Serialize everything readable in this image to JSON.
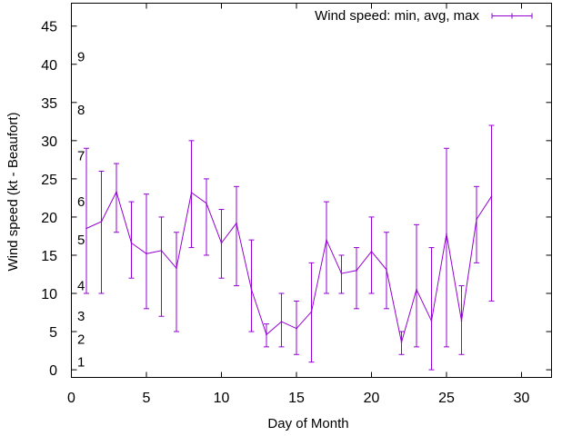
{
  "chart_data": {
    "type": "line",
    "title": "",
    "xlabel": "Day of Month",
    "ylabel": "Wind speed (kt - Beaufort)",
    "xlim": [
      0,
      32
    ],
    "ylim": [
      -1,
      48
    ],
    "xticks": [
      0,
      5,
      10,
      15,
      20,
      25,
      30
    ],
    "yticks": [
      0,
      5,
      10,
      15,
      20,
      25,
      30,
      35,
      40,
      45
    ],
    "grid": false,
    "legend_position": "top-right",
    "series": [
      {
        "name": "Wind speed: min, avg, max",
        "color": "#9400d3",
        "style": "line with error bars",
        "x": [
          1,
          2,
          3,
          4,
          5,
          6,
          7,
          8,
          9,
          10,
          11,
          12,
          13,
          14,
          15,
          16,
          17,
          18,
          19,
          20,
          21,
          22,
          23,
          24,
          25,
          26,
          27,
          28
        ],
        "avg": [
          18.5,
          19.4,
          23.3,
          16.6,
          15.2,
          15.6,
          13.3,
          23.2,
          21.8,
          16.6,
          19.2,
          10.5,
          4.6,
          6.3,
          5.4,
          7.6,
          17.0,
          12.6,
          13.0,
          15.5,
          13.1,
          3.6,
          10.5,
          6.4,
          17.8,
          6.4,
          19.7,
          22.7
        ],
        "min": [
          10,
          10,
          18,
          12,
          8,
          7,
          5,
          16,
          15,
          12,
          11,
          5,
          3,
          3,
          2,
          1,
          10,
          10,
          8,
          10,
          8,
          2,
          3,
          0,
          3,
          2,
          14,
          9
        ],
        "max": [
          29,
          26,
          27,
          22,
          23,
          20,
          18,
          30,
          25,
          21,
          24,
          17,
          6,
          10,
          9,
          14,
          22,
          15,
          16,
          20,
          18,
          5,
          19,
          16,
          29,
          11,
          24,
          32
        ]
      }
    ],
    "beaufort_labels": [
      {
        "text": "1",
        "y": 1
      },
      {
        "text": "2",
        "y": 4
      },
      {
        "text": "3",
        "y": 7
      },
      {
        "text": "4",
        "y": 11
      },
      {
        "text": "5",
        "y": 17
      },
      {
        "text": "6",
        "y": 22
      },
      {
        "text": "7",
        "y": 28
      },
      {
        "text": "8",
        "y": 34
      },
      {
        "text": "9",
        "y": 41
      }
    ]
  }
}
